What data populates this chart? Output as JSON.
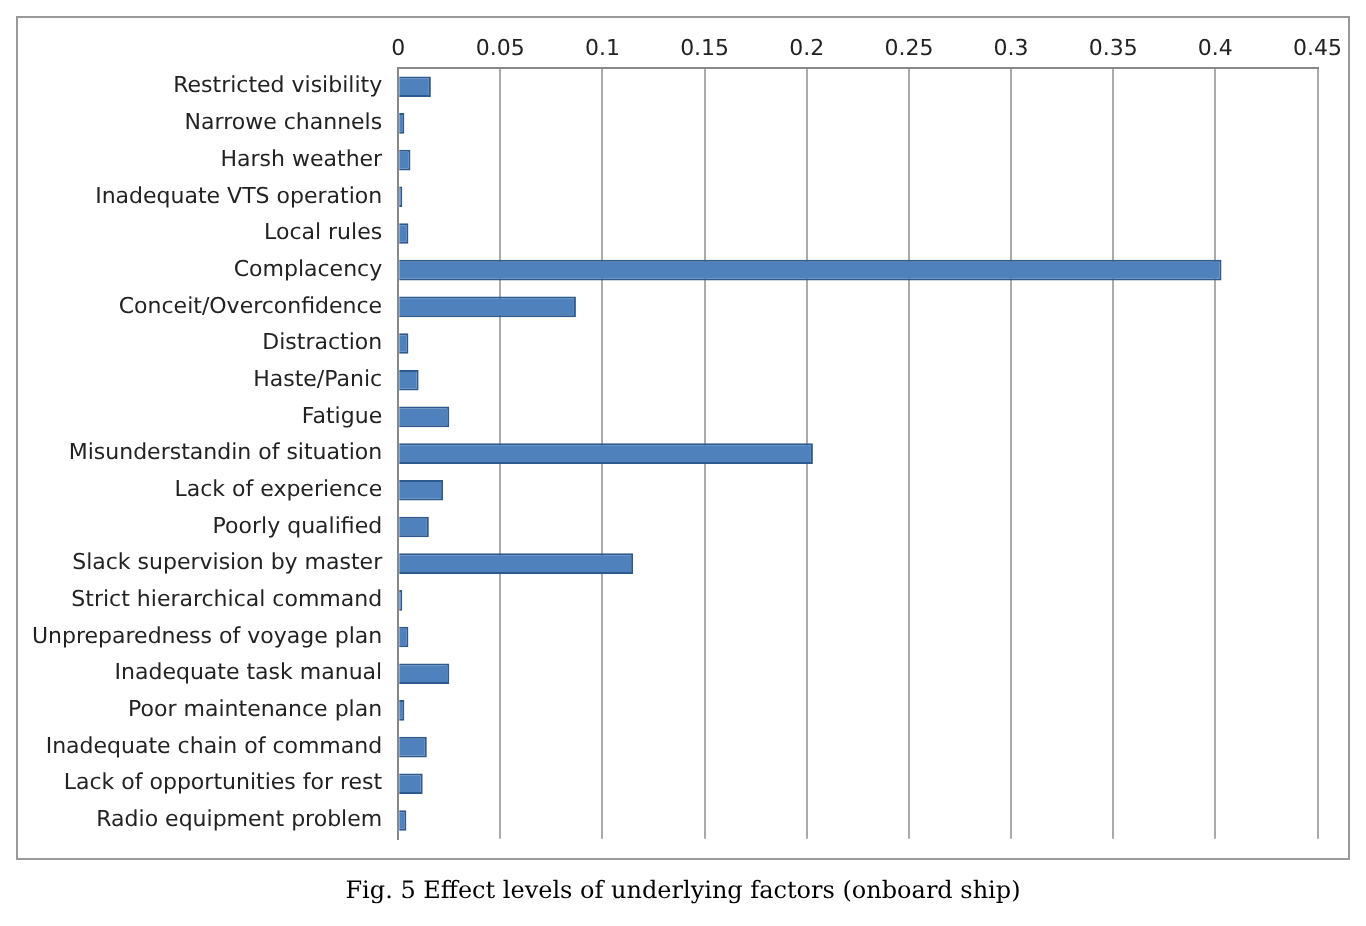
{
  "chart_data": {
    "type": "bar",
    "orientation": "horizontal",
    "title": "Fig. 5 Effect levels of underlying factors (onboard ship)",
    "categories": [
      "Restricted visibility",
      "Narrowe channels",
      "Harsh weather",
      "Inadequate VTS operation",
      "Local rules",
      "Complacency",
      "Conceit/Overconfidence",
      "Distraction",
      "Haste/Panic",
      "Fatigue",
      "Misunderstandin of situation",
      "Lack of experience",
      "Poorly qualified",
      "Slack supervision by master",
      "Strict hierarchical command",
      "Unpreparedness of voyage plan",
      "Inadequate task manual",
      "Poor maintenance plan",
      "Inadequate chain of command",
      "Lack of opportunities for rest",
      "Radio equipment problem"
    ],
    "values": [
      0.016,
      0.003,
      0.006,
      0.002,
      0.005,
      0.403,
      0.087,
      0.005,
      0.01,
      0.025,
      0.203,
      0.022,
      0.015,
      0.115,
      0.002,
      0.005,
      0.025,
      0.003,
      0.014,
      0.012,
      0.004
    ],
    "color": "#4f81bd",
    "xlim": [
      0,
      0.45
    ],
    "xticks": [
      0,
      0.05,
      0.1,
      0.15,
      0.2,
      0.25,
      0.3,
      0.35,
      0.4,
      0.45
    ],
    "grid": "x"
  }
}
